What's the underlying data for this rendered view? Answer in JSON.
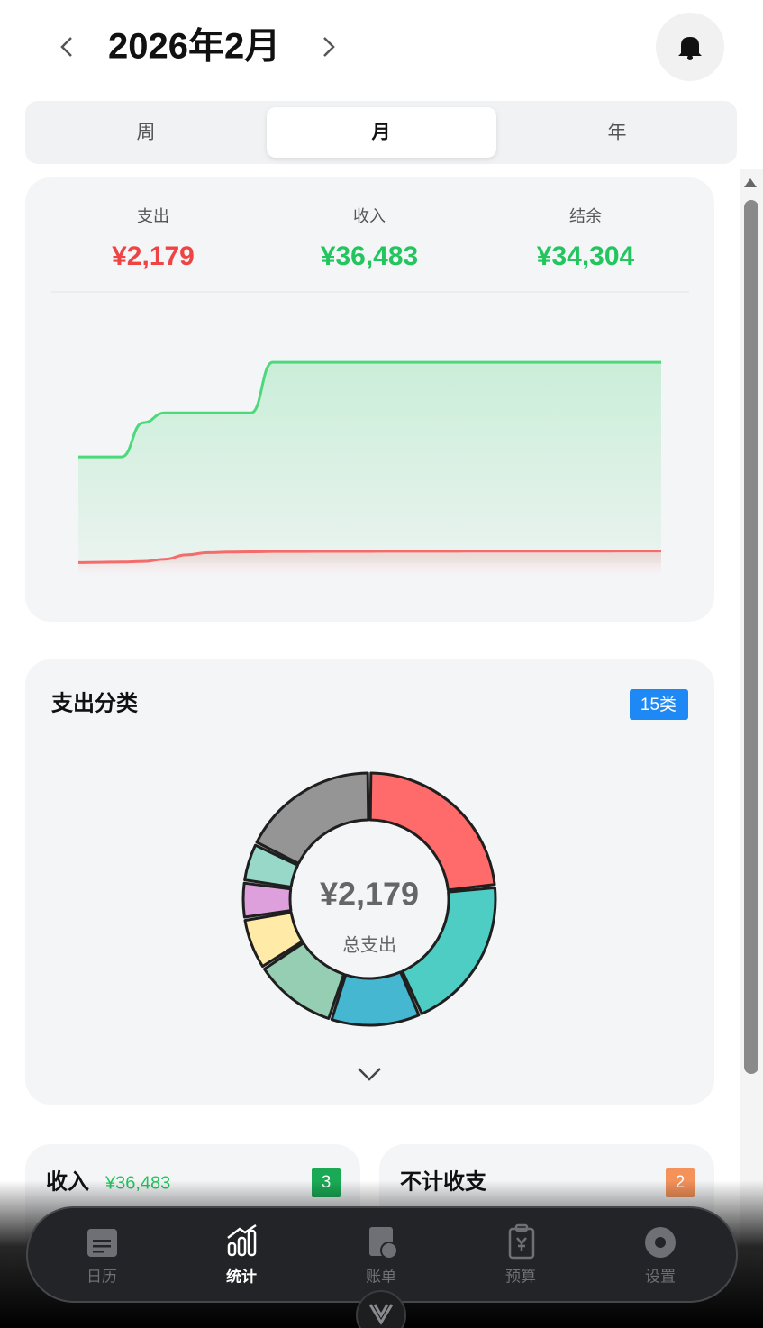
{
  "header": {
    "month": "2026年2月"
  },
  "tabs": [
    "周",
    "月",
    "年"
  ],
  "summary": [
    {
      "label": "支出",
      "value": "¥2,179"
    },
    {
      "label": "收入",
      "value": "¥36,483"
    },
    {
      "label": "结余",
      "value": "¥34,304"
    }
  ],
  "category_card": {
    "title": "支出分类",
    "badge": "15类",
    "center_value": "¥2,179",
    "center_label": "总支出"
  },
  "income_card": {
    "title": "收入",
    "amount": "¥36,483",
    "badge": "3"
  },
  "excluded_card": {
    "title": "不计收支",
    "badge": "2"
  },
  "nav": [
    "日历",
    "统计",
    "账单",
    "预算",
    "设置"
  ],
  "chart_data": [
    {
      "type": "line",
      "ylim": [
        0,
        36500
      ],
      "series": [
        {
          "color": "#4cd97b",
          "values": [
            19300,
            19300,
            19300,
            25500,
            27300,
            27300,
            27300,
            27300,
            27300,
            36483,
            36483,
            36483,
            36483,
            36483,
            36483,
            36483,
            36483,
            36483,
            36483,
            36483,
            36483,
            36483,
            36483,
            36483,
            36483,
            36483,
            36483,
            36483
          ]
        },
        {
          "color": "#f56c6c",
          "values": [
            100,
            150,
            200,
            300,
            700,
            1500,
            1900,
            2000,
            2050,
            2100,
            2100,
            2120,
            2120,
            2130,
            2140,
            2140,
            2150,
            2150,
            2160,
            2160,
            2165,
            2170,
            2170,
            2175,
            2175,
            2179,
            2179,
            2179
          ]
        }
      ]
    },
    {
      "type": "pie",
      "categories": [
        null,
        null,
        null,
        null,
        null,
        null,
        null,
        null
      ],
      "values": [
        509,
        436,
        254,
        236,
        145,
        103,
        109,
        387
      ],
      "colors": [
        "#ff6b6b",
        "#4ecdc4",
        "#45b7d1",
        "#96ceb4",
        "#ffeaa7",
        "#dda0dd",
        "#98d8c8",
        "#959595"
      ]
    }
  ]
}
